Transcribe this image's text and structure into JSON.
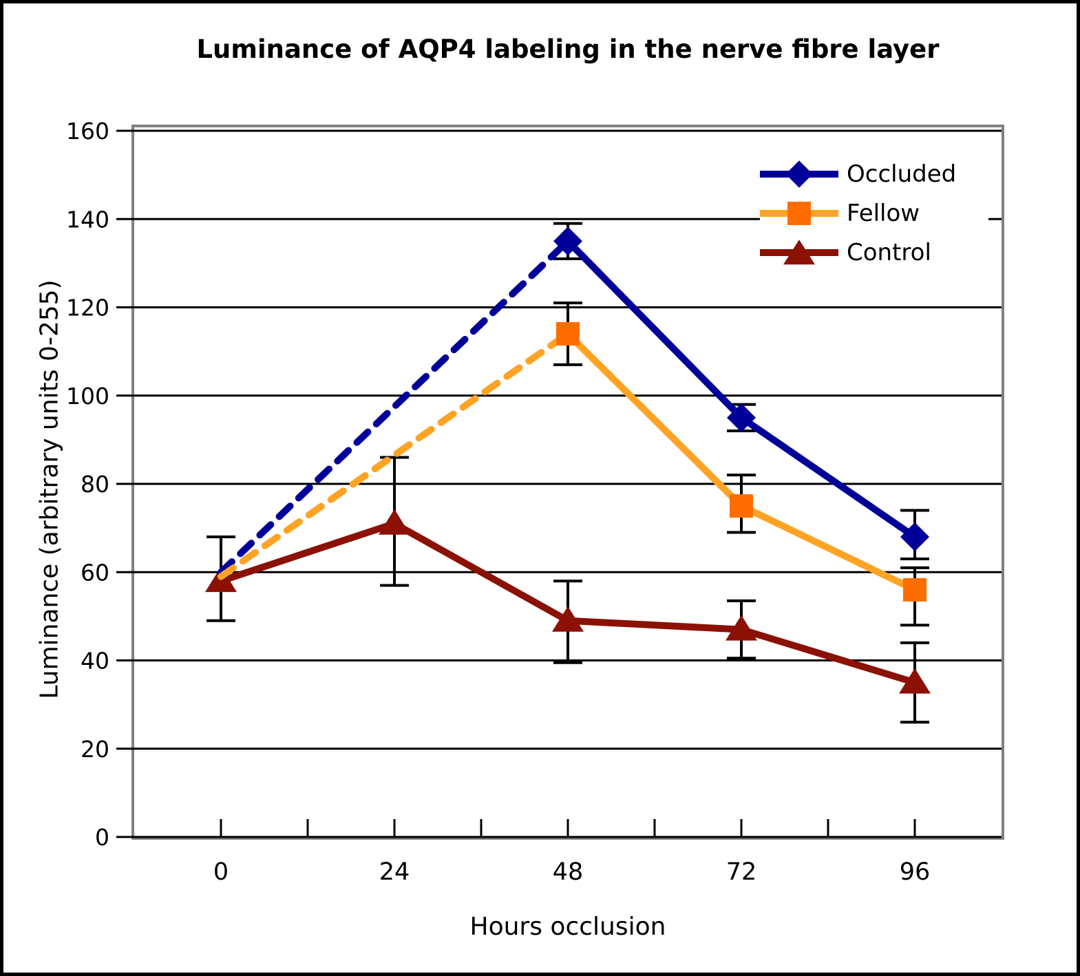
{
  "window": {
    "background": "#FFFFFF",
    "outer_border_color": "#000000"
  },
  "chart_data": {
    "type": "line",
    "title": "Luminance of AQP4 labeling in the nerve fibre layer",
    "xlabel": "Hours occlusion",
    "ylabel": "Luminance (arbitrary units 0-255)",
    "x_categories": [
      "0",
      "24",
      "48",
      "72",
      "96"
    ],
    "x_values": [
      0,
      24,
      48,
      72,
      96
    ],
    "ylim": [
      0,
      160
    ],
    "yticks": [
      0,
      20,
      40,
      60,
      80,
      100,
      120,
      140,
      160
    ],
    "grid": "horizontal",
    "gridline_color": "#000000",
    "plot_border_color": "#808080",
    "error_bar_color": "#000000",
    "legend_position": "top-right-inside",
    "legend_background": "#FFFFFF",
    "draw_order": [
      2,
      0,
      1
    ],
    "series": [
      {
        "name": "Occluded",
        "marker": "diamond",
        "color": "#000099",
        "marker_color": "#000099",
        "values": [
          60,
          null,
          135,
          95,
          68
        ],
        "err_up": [
          null,
          null,
          4,
          3,
          6
        ],
        "err_down": [
          null,
          null,
          4,
          3,
          5
        ],
        "dashed_through_index": 2,
        "marker_visible": [
          false,
          false,
          true,
          true,
          true
        ],
        "line_style_note": "dashed from 0h to 48h (no 24h point), solid after"
      },
      {
        "name": "Fellow",
        "marker": "square",
        "color": "#FFA324",
        "marker_color": "#FF6D00",
        "values": [
          59,
          null,
          114,
          75,
          56
        ],
        "err_up": [
          null,
          null,
          7,
          7,
          5
        ],
        "err_down": [
          null,
          null,
          7,
          6,
          8
        ],
        "dashed_through_index": 2,
        "marker_visible": [
          false,
          false,
          true,
          true,
          true
        ],
        "line_style_note": "dashed from 0h to 48h (no 24h point), solid after"
      },
      {
        "name": "Control",
        "marker": "triangle",
        "color": "#8B1104",
        "marker_color": "#8B1104",
        "values": [
          58,
          71,
          49,
          47,
          35
        ],
        "err_up": [
          10,
          15,
          9,
          6.5,
          9
        ],
        "err_down": [
          9,
          14,
          9.5,
          6.5,
          9
        ],
        "dashed_through_index": null,
        "marker_visible": [
          true,
          true,
          true,
          true,
          true
        ],
        "line_style_note": "solid throughout"
      }
    ]
  }
}
